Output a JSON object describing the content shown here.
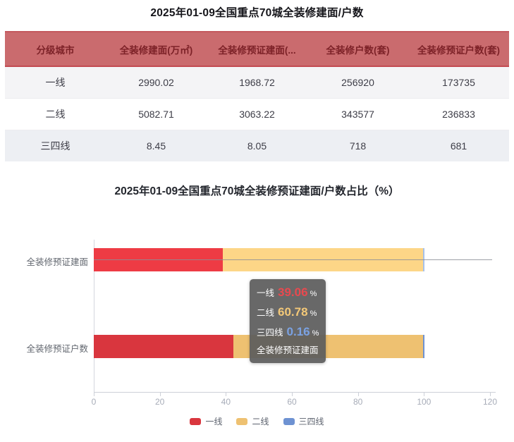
{
  "table": {
    "title": "2025年01-09全国重点70城全装修建面/户数",
    "columns": [
      "分级城市",
      "全装修建面(万㎡)",
      "全装修预证建面(...",
      "全装修户数(套)",
      "全装修预证户数(套)"
    ],
    "rows": [
      [
        "一线",
        "2990.02",
        "1968.72",
        "256920",
        "173735"
      ],
      [
        "二线",
        "5082.71",
        "3063.22",
        "343577",
        "236833"
      ],
      [
        "三四线",
        "8.45",
        "8.05",
        "718",
        "681"
      ]
    ],
    "header_bg": "#ca6b6e",
    "header_text_color": "#7d2228"
  },
  "chart_data": {
    "type": "bar",
    "orientation": "horizontal",
    "stacked": true,
    "title": "2025年01-09全国重点70城全装修预证建面/户数占比（%）",
    "categories": [
      "全装修预证建面",
      "全装修预证户数"
    ],
    "series": [
      {
        "name": "一线",
        "color": "#d9363e",
        "color_hover": "#ee3b44",
        "values": [
          39.06,
          42.25
        ]
      },
      {
        "name": "二线",
        "color": "#eec171",
        "color_hover": "#fdd687",
        "values": [
          60.78,
          57.59
        ]
      },
      {
        "name": "三四线",
        "color": "#6e92d2",
        "color_hover": "#a6c1ea",
        "values": [
          0.16,
          0.17
        ]
      }
    ],
    "xlim": [
      0,
      120
    ],
    "x_ticks": [
      "0",
      "20",
      "40",
      "60",
      "80",
      "100",
      "120"
    ],
    "grid": false,
    "legend_position": "bottom",
    "tooltip": {
      "category": "全装修预证建面",
      "unit": "%",
      "items": [
        {
          "label": "一线",
          "value": "39.06",
          "color": "#e9494f"
        },
        {
          "label": "二线",
          "value": "60.78",
          "color": "#f3c878"
        },
        {
          "label": "三四线",
          "value": "0.16",
          "color": "#7ba2e2"
        }
      ]
    }
  }
}
